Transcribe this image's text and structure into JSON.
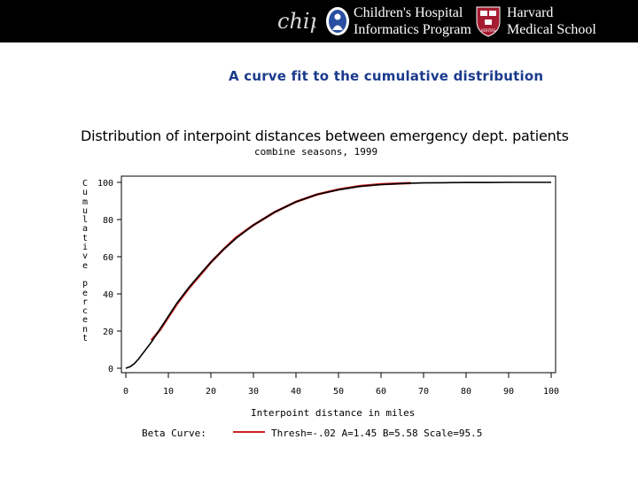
{
  "header": {
    "chip_line1": "Children's Hospital",
    "chip_line2": "Informatics Program",
    "hms_line1": "Harvard",
    "hms_line2": "Medical School",
    "chip_wordmark_text": "chip",
    "hms_shield_text": "VERITAS"
  },
  "slide": {
    "title": "A curve fit to the cumulative distribution"
  },
  "colors": {
    "header_bg": "#000000",
    "title_blue": "#1a3a8c",
    "fit_red": "#cc2222",
    "data_black": "#000000"
  },
  "chart_data": {
    "type": "line",
    "title": "Distribution of interpoint distances between emergency dept. patients",
    "subtitle": "combine seasons, 1999",
    "xlabel": "Interpoint distance in miles",
    "ylabel": "Cumulative percent",
    "xlim": [
      0,
      100
    ],
    "ylim": [
      0,
      100
    ],
    "xticks": [
      0,
      10,
      20,
      30,
      40,
      50,
      60,
      70,
      80,
      90,
      100
    ],
    "yticks": [
      0,
      20,
      40,
      60,
      80,
      100
    ],
    "grid": false,
    "legend": {
      "placement": "bottom",
      "label": "Beta Curve:",
      "entry": "Thresh=-.02 A=1.45 B=5.58 Scale=95.5"
    },
    "series": [
      {
        "role": "empirical",
        "color": "#000000",
        "x": [
          0,
          1,
          2,
          3,
          4,
          5,
          6,
          7,
          8,
          10,
          12,
          15,
          18,
          20,
          23,
          26,
          30,
          35,
          40,
          45,
          50,
          55,
          60,
          65,
          70,
          75,
          80,
          85,
          90,
          95,
          100
        ],
        "y": [
          0,
          0.8,
          2.5,
          5,
          8,
          11,
          14,
          17.5,
          21,
          28,
          35,
          44,
          52,
          57,
          64,
          70,
          77,
          84,
          89.5,
          93.5,
          96,
          97.8,
          98.8,
          99.4,
          99.7,
          99.8,
          99.9,
          99.9,
          100,
          100,
          100
        ]
      },
      {
        "role": "beta-fit",
        "color": "#cc2222",
        "x": [
          6,
          8,
          10,
          12,
          15,
          18,
          20,
          23,
          26,
          30,
          35,
          40,
          45,
          50,
          55,
          60,
          64,
          67
        ],
        "y": [
          15,
          20.5,
          27.5,
          34.5,
          43.5,
          51.5,
          57,
          64,
          70.5,
          77,
          84,
          89.5,
          93.5,
          96.2,
          98,
          99,
          99.4,
          99.6
        ]
      }
    ]
  }
}
